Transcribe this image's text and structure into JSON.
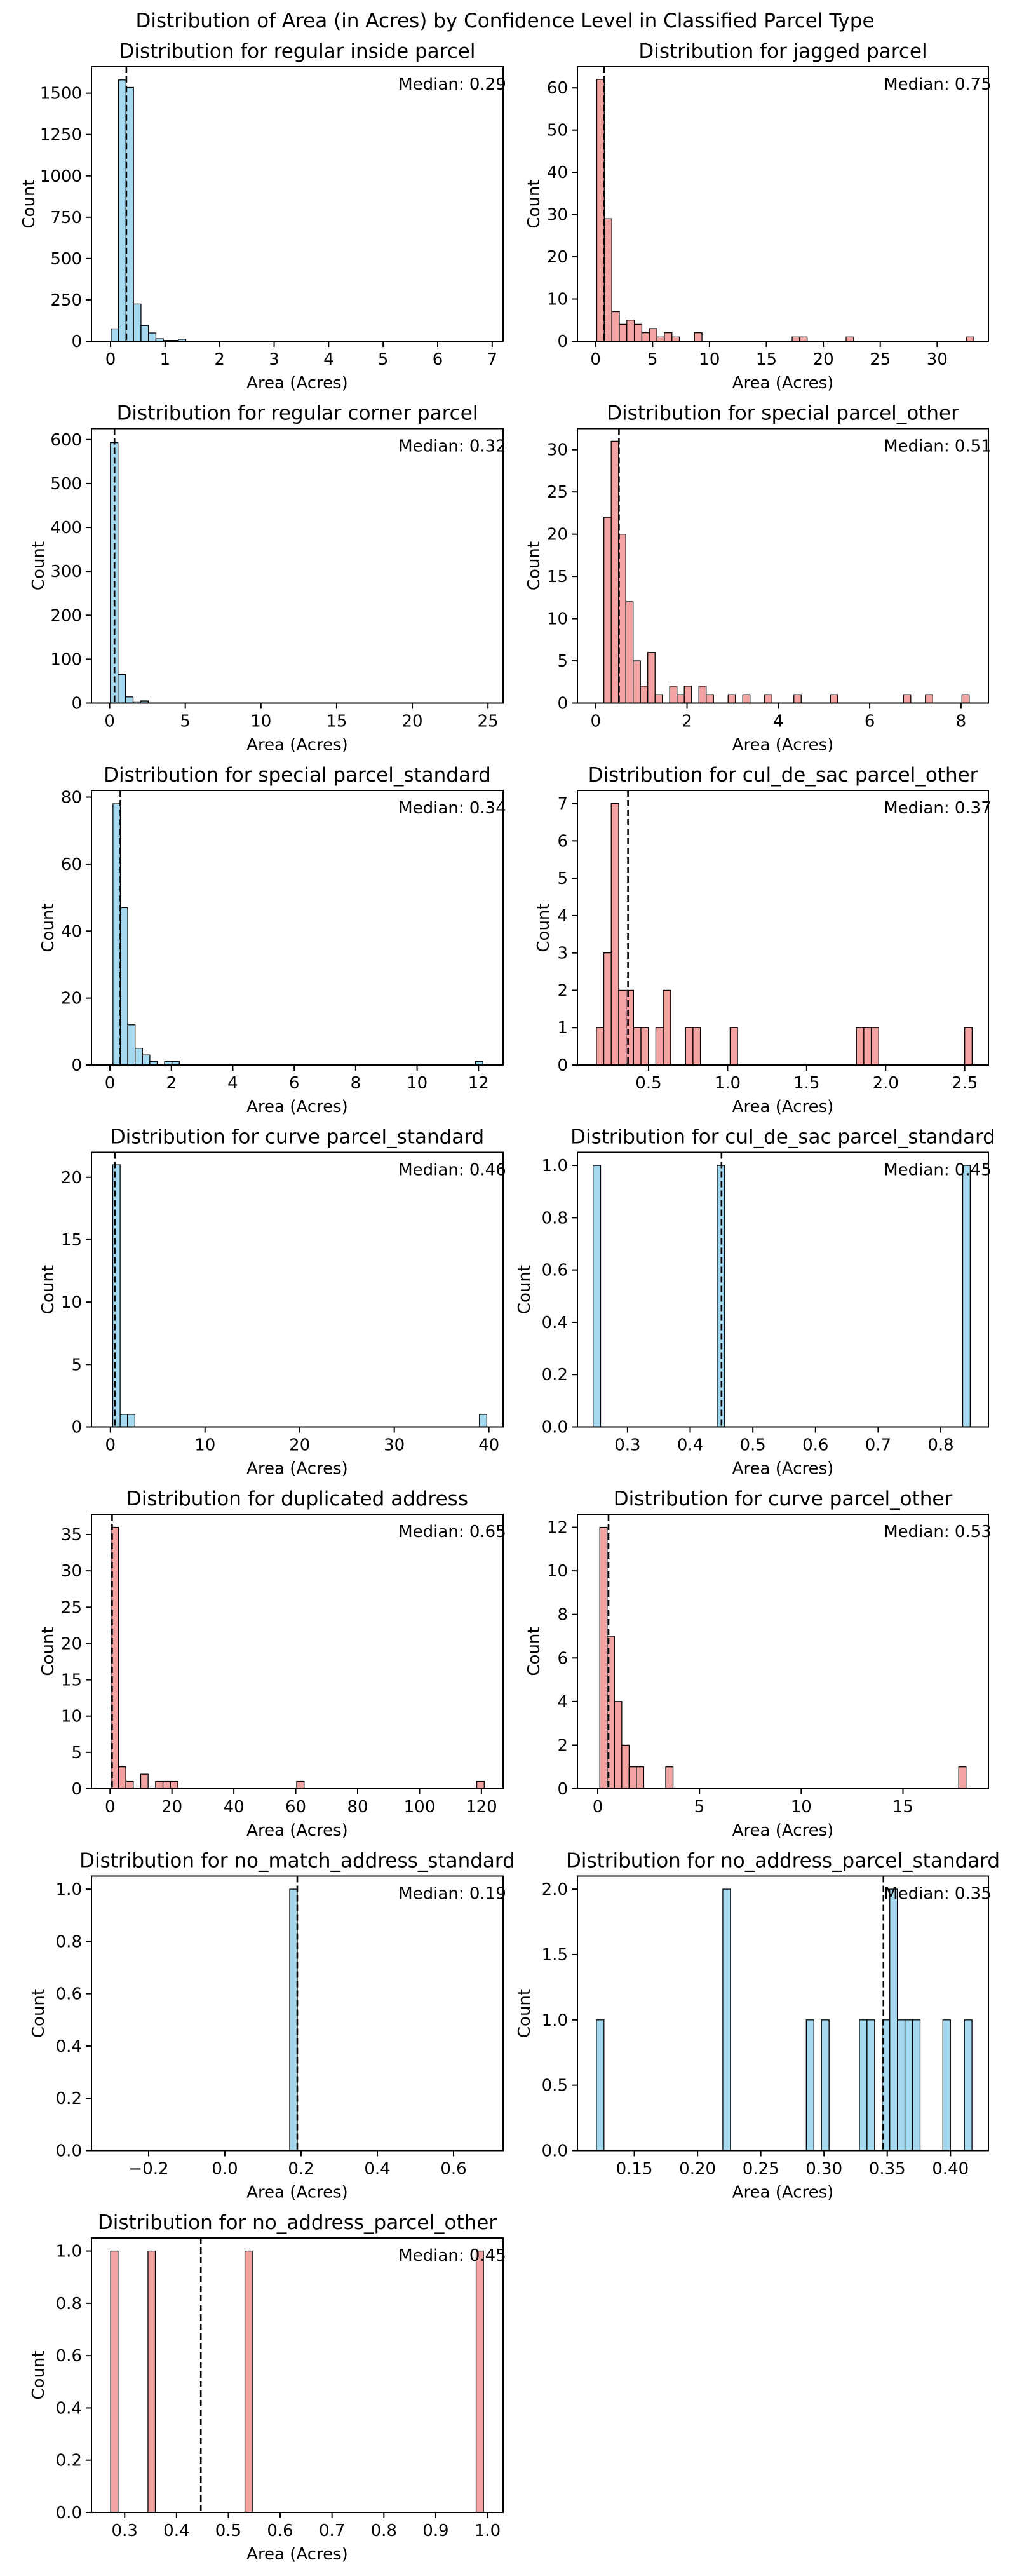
{
  "colors": {
    "blue": "#a5d9ef",
    "red": "#f4a3a3",
    "edge": "#000000"
  },
  "chart_data": {
    "type": "bar",
    "title": "Distribution of Area (in Acres) by Confidence Level in Classified Parcel Type",
    "panels": [
      {
        "title": "Distribution for regular inside parcel",
        "color": "blue",
        "median": 0.29,
        "median_label": "Median: 0.29",
        "xlabel": "Area (Acres)",
        "ylabel": "Count",
        "xlim": [
          -0.35,
          7.2
        ],
        "ylim": [
          0,
          1660
        ],
        "bin_width": 0.137,
        "xticks": [
          0,
          1,
          2,
          3,
          4,
          5,
          6,
          7
        ],
        "xtick_labels": [
          "0",
          "1",
          "2",
          "3",
          "4",
          "5",
          "6",
          "7"
        ],
        "yticks": [
          0,
          250,
          500,
          750,
          1000,
          1250,
          1500
        ],
        "ytick_labels": [
          "0",
          "250",
          "500",
          "750",
          "1000",
          "1250",
          "1500"
        ],
        "bars": [
          [
            0.01,
            75
          ],
          [
            0.147,
            1580
          ],
          [
            0.284,
            1535
          ],
          [
            0.421,
            225
          ],
          [
            0.558,
            95
          ],
          [
            0.695,
            50
          ],
          [
            0.832,
            15
          ],
          [
            0.969,
            5
          ],
          [
            1.106,
            5
          ],
          [
            1.243,
            12
          ]
        ]
      },
      {
        "title": "Distribution for jagged parcel",
        "color": "red",
        "median": 0.75,
        "median_label": "Median: 0.75",
        "xlabel": "Area (Acres)",
        "ylabel": "Count",
        "xlim": [
          -1.6,
          34.5
        ],
        "ylim": [
          0,
          65
        ],
        "bin_width": 0.66,
        "xticks": [
          0,
          5,
          10,
          15,
          20,
          25,
          30
        ],
        "xtick_labels": [
          "0",
          "5",
          "10",
          "15",
          "20",
          "25",
          "30"
        ],
        "yticks": [
          0,
          10,
          20,
          30,
          40,
          50,
          60
        ],
        "ytick_labels": [
          "0",
          "10",
          "20",
          "30",
          "40",
          "50",
          "60"
        ],
        "bars": [
          [
            0.1,
            62
          ],
          [
            0.76,
            29
          ],
          [
            1.42,
            7
          ],
          [
            2.08,
            4
          ],
          [
            2.74,
            5
          ],
          [
            3.4,
            4
          ],
          [
            4.06,
            2
          ],
          [
            4.72,
            3
          ],
          [
            5.38,
            1
          ],
          [
            6.04,
            2
          ],
          [
            6.7,
            1
          ],
          [
            8.68,
            2
          ],
          [
            17.26,
            1
          ],
          [
            17.92,
            1
          ],
          [
            22.0,
            1
          ],
          [
            32.56,
            1
          ]
        ]
      },
      {
        "title": "Distribution for regular corner parcel",
        "color": "blue",
        "median": 0.32,
        "median_label": "Median: 0.32",
        "xlabel": "Area (Acres)",
        "ylabel": "Count",
        "xlim": [
          -1.2,
          26
        ],
        "ylim": [
          0,
          625
        ],
        "bin_width": 0.5,
        "xticks": [
          0,
          5,
          10,
          15,
          20,
          25
        ],
        "xtick_labels": [
          "0",
          "5",
          "10",
          "15",
          "20",
          "25"
        ],
        "yticks": [
          0,
          100,
          200,
          300,
          400,
          500,
          600
        ],
        "ytick_labels": [
          "0",
          "100",
          "200",
          "300",
          "400",
          "500",
          "600"
        ],
        "bars": [
          [
            0.05,
            593
          ],
          [
            0.55,
            65
          ],
          [
            1.05,
            14
          ],
          [
            1.55,
            3
          ],
          [
            2.05,
            5
          ]
        ]
      },
      {
        "title": "Distribution for special parcel_other",
        "color": "red",
        "median": 0.51,
        "median_label": "Median: 0.51",
        "xlabel": "Area (Acres)",
        "ylabel": "Count",
        "xlim": [
          -0.4,
          8.6
        ],
        "ylim": [
          0,
          32.5
        ],
        "bin_width": 0.16,
        "xticks": [
          0,
          2,
          4,
          6,
          8
        ],
        "xtick_labels": [
          "0",
          "2",
          "4",
          "6",
          "8"
        ],
        "yticks": [
          0,
          5,
          10,
          15,
          20,
          25,
          30
        ],
        "ytick_labels": [
          "0",
          "5",
          "10",
          "15",
          "20",
          "25",
          "30"
        ],
        "bars": [
          [
            0.18,
            22
          ],
          [
            0.34,
            31
          ],
          [
            0.5,
            20
          ],
          [
            0.66,
            12
          ],
          [
            0.82,
            5
          ],
          [
            0.98,
            2
          ],
          [
            1.14,
            6
          ],
          [
            1.3,
            1
          ],
          [
            1.62,
            2
          ],
          [
            1.78,
            1
          ],
          [
            1.94,
            2
          ],
          [
            2.26,
            2
          ],
          [
            2.42,
            1
          ],
          [
            2.9,
            1
          ],
          [
            3.22,
            1
          ],
          [
            3.7,
            1
          ],
          [
            4.34,
            1
          ],
          [
            5.14,
            1
          ],
          [
            6.74,
            1
          ],
          [
            7.22,
            1
          ],
          [
            8.02,
            1
          ]
        ]
      },
      {
        "title": "Distribution for special parcel_standard",
        "color": "blue",
        "median": 0.34,
        "median_label": "Median: 0.34",
        "xlabel": "Area (Acres)",
        "ylabel": "Count",
        "xlim": [
          -0.6,
          12.8
        ],
        "ylim": [
          0,
          82
        ],
        "bin_width": 0.24,
        "xticks": [
          0,
          2,
          4,
          6,
          8,
          10,
          12
        ],
        "xtick_labels": [
          "0",
          "2",
          "4",
          "6",
          "8",
          "10",
          "12"
        ],
        "yticks": [
          0,
          20,
          40,
          60,
          80
        ],
        "ytick_labels": [
          "0",
          "20",
          "40",
          "60",
          "80"
        ],
        "bars": [
          [
            0.1,
            78
          ],
          [
            0.34,
            47
          ],
          [
            0.58,
            12
          ],
          [
            0.82,
            5
          ],
          [
            1.06,
            3
          ],
          [
            1.3,
            1
          ],
          [
            1.78,
            1
          ],
          [
            2.02,
            1
          ],
          [
            11.9,
            1
          ]
        ]
      },
      {
        "title": "Distribution for cul_de_sac parcel_other",
        "color": "red",
        "median": 0.37,
        "median_label": "Median: 0.37",
        "xlabel": "Area (Acres)",
        "ylabel": "Count",
        "xlim": [
          0.05,
          2.65
        ],
        "ylim": [
          0,
          7.35
        ],
        "bin_width": 0.047,
        "xticks": [
          0.5,
          1.0,
          1.5,
          2.0,
          2.5
        ],
        "xtick_labels": [
          "0.5",
          "1.0",
          "1.5",
          "2.0",
          "2.5"
        ],
        "yticks": [
          0,
          1,
          2,
          3,
          4,
          5,
          6,
          7
        ],
        "ytick_labels": [
          "0",
          "1",
          "2",
          "3",
          "4",
          "5",
          "6",
          "7"
        ],
        "bars": [
          [
            0.17,
            1
          ],
          [
            0.217,
            3
          ],
          [
            0.264,
            7
          ],
          [
            0.311,
            2
          ],
          [
            0.358,
            2
          ],
          [
            0.405,
            1
          ],
          [
            0.452,
            1
          ],
          [
            0.546,
            1
          ],
          [
            0.593,
            2
          ],
          [
            0.734,
            1
          ],
          [
            0.781,
            1
          ],
          [
            1.016,
            1
          ],
          [
            1.815,
            1
          ],
          [
            1.862,
            1
          ],
          [
            1.909,
            1
          ],
          [
            2.5,
            1
          ]
        ]
      },
      {
        "title": "Distribution for curve parcel_standard",
        "color": "blue",
        "median": 0.46,
        "median_label": "Median: 0.46",
        "xlabel": "Area (Acres)",
        "ylabel": "Count",
        "xlim": [
          -2,
          41.5
        ],
        "ylim": [
          0,
          22
        ],
        "bin_width": 0.78,
        "xticks": [
          0,
          10,
          20,
          30,
          40
        ],
        "xtick_labels": [
          "0",
          "10",
          "20",
          "30",
          "40"
        ],
        "yticks": [
          0,
          5,
          10,
          15,
          20
        ],
        "ytick_labels": [
          "0",
          "5",
          "10",
          "15",
          "20"
        ],
        "bars": [
          [
            0.25,
            21
          ],
          [
            1.03,
            1
          ],
          [
            1.81,
            1
          ],
          [
            39.0,
            1
          ]
        ]
      },
      {
        "title": "Distribution for cul_de_sac parcel_standard",
        "color": "blue",
        "median": 0.45,
        "median_label": "Median: 0.45",
        "xlabel": "Area (Acres)",
        "ylabel": "Count",
        "xlim": [
          0.22,
          0.876
        ],
        "ylim": [
          0,
          1.05
        ],
        "bin_width": 0.012,
        "xticks": [
          0.3,
          0.4,
          0.5,
          0.6,
          0.7,
          0.8
        ],
        "xtick_labels": [
          "0.3",
          "0.4",
          "0.5",
          "0.6",
          "0.7",
          "0.8"
        ],
        "yticks": [
          0,
          0.2,
          0.4,
          0.6,
          0.8,
          1.0
        ],
        "ytick_labels": [
          "0.0",
          "0.2",
          "0.4",
          "0.6",
          "0.8",
          "1.0"
        ],
        "bars": [
          [
            0.245,
            1
          ],
          [
            0.443,
            1
          ],
          [
            0.835,
            1
          ]
        ]
      },
      {
        "title": "Distribution for duplicated address",
        "color": "red",
        "median": 0.65,
        "median_label": "Median: 0.65",
        "xlabel": "Area (Acres)",
        "ylabel": "Count",
        "xlim": [
          -6,
          127
        ],
        "ylim": [
          0,
          37.8
        ],
        "bin_width": 2.4,
        "xticks": [
          0,
          20,
          40,
          60,
          80,
          100,
          120
        ],
        "xtick_labels": [
          "0",
          "20",
          "40",
          "60",
          "80",
          "100",
          "120"
        ],
        "yticks": [
          0,
          5,
          10,
          15,
          20,
          25,
          30,
          35
        ],
        "ytick_labels": [
          "0",
          "5",
          "10",
          "15",
          "20",
          "25",
          "30",
          "35"
        ],
        "bars": [
          [
            0.3,
            36
          ],
          [
            2.7,
            3
          ],
          [
            5.1,
            1
          ],
          [
            9.9,
            2
          ],
          [
            14.7,
            1
          ],
          [
            17.1,
            1
          ],
          [
            19.5,
            1
          ],
          [
            60.3,
            1
          ],
          [
            118.5,
            1
          ]
        ]
      },
      {
        "title": "Distribution for curve parcel_other",
        "color": "red",
        "median": 0.53,
        "median_label": "Median: 0.53",
        "xlabel": "Area (Acres)",
        "ylabel": "Count",
        "xlim": [
          -1,
          19.2
        ],
        "ylim": [
          0,
          12.6
        ],
        "bin_width": 0.36,
        "xticks": [
          0,
          5,
          10,
          15
        ],
        "xtick_labels": [
          "0",
          "5",
          "10",
          "15"
        ],
        "yticks": [
          0,
          2,
          4,
          6,
          8,
          10,
          12
        ],
        "ytick_labels": [
          "0",
          "2",
          "4",
          "6",
          "8",
          "10",
          "12"
        ],
        "bars": [
          [
            0.1,
            12
          ],
          [
            0.46,
            7
          ],
          [
            0.82,
            4
          ],
          [
            1.18,
            2
          ],
          [
            1.54,
            1
          ],
          [
            1.9,
            1
          ],
          [
            3.34,
            1
          ],
          [
            17.74,
            1
          ]
        ]
      },
      {
        "title": "Distribution for no_match_address_standard",
        "color": "blue",
        "median": 0.19,
        "median_label": "Median: 0.19",
        "xlabel": "Area (Acres)",
        "ylabel": "Count",
        "xlim": [
          -0.35,
          0.73
        ],
        "ylim": [
          0,
          1.05
        ],
        "bin_width": 0.02,
        "xticks": [
          -0.2,
          0,
          0.2,
          0.4,
          0.6
        ],
        "xtick_labels": [
          "−0.2",
          "0.0",
          "0.2",
          "0.4",
          "0.6"
        ],
        "yticks": [
          0,
          0.2,
          0.4,
          0.6,
          0.8,
          1.0
        ],
        "ytick_labels": [
          "0.0",
          "0.2",
          "0.4",
          "0.6",
          "0.8",
          "1.0"
        ],
        "bars": [
          [
            0.17,
            1
          ]
        ]
      },
      {
        "title": "Distribution for no_address_parcel_standard",
        "color": "blue",
        "median": 0.347,
        "median_label": "Median: 0.35",
        "xlabel": "Area (Acres)",
        "ylabel": "Count",
        "xlim": [
          0.105,
          0.43
        ],
        "ylim": [
          0,
          2.1
        ],
        "bin_width": 0.006,
        "xticks": [
          0.15,
          0.2,
          0.25,
          0.3,
          0.35,
          0.4
        ],
        "xtick_labels": [
          "0.15",
          "0.20",
          "0.25",
          "0.30",
          "0.35",
          "0.40"
        ],
        "yticks": [
          0,
          0.5,
          1.0,
          1.5,
          2.0
        ],
        "ytick_labels": [
          "0.0",
          "0.5",
          "1.0",
          "1.5",
          "2.0"
        ],
        "bars": [
          [
            0.12,
            1
          ],
          [
            0.22,
            2
          ],
          [
            0.286,
            1
          ],
          [
            0.298,
            1
          ],
          [
            0.328,
            1
          ],
          [
            0.334,
            1
          ],
          [
            0.346,
            1
          ],
          [
            0.352,
            2
          ],
          [
            0.358,
            1
          ],
          [
            0.364,
            1
          ],
          [
            0.37,
            1
          ],
          [
            0.394,
            1
          ],
          [
            0.411,
            1
          ]
        ]
      },
      {
        "title": "Distribution for no_address_parcel_other",
        "color": "red",
        "median": 0.447,
        "median_label": "Median: 0.45",
        "xlabel": "Area (Acres)",
        "ylabel": "Count",
        "xlim": [
          0.236,
          1.03
        ],
        "ylim": [
          0,
          1.05
        ],
        "bin_width": 0.0142,
        "xticks": [
          0.3,
          0.4,
          0.5,
          0.6,
          0.7,
          0.8,
          0.9,
          1.0
        ],
        "xtick_labels": [
          "0.3",
          "0.4",
          "0.5",
          "0.6",
          "0.7",
          "0.8",
          "0.9",
          "1.0"
        ],
        "yticks": [
          0,
          0.2,
          0.4,
          0.6,
          0.8,
          1.0
        ],
        "ytick_labels": [
          "0.0",
          "0.2",
          "0.4",
          "0.6",
          "0.8",
          "1.0"
        ],
        "bars": [
          [
            0.273,
            1
          ],
          [
            0.345,
            1
          ],
          [
            0.532,
            1
          ],
          [
            0.978,
            1
          ]
        ]
      }
    ]
  }
}
